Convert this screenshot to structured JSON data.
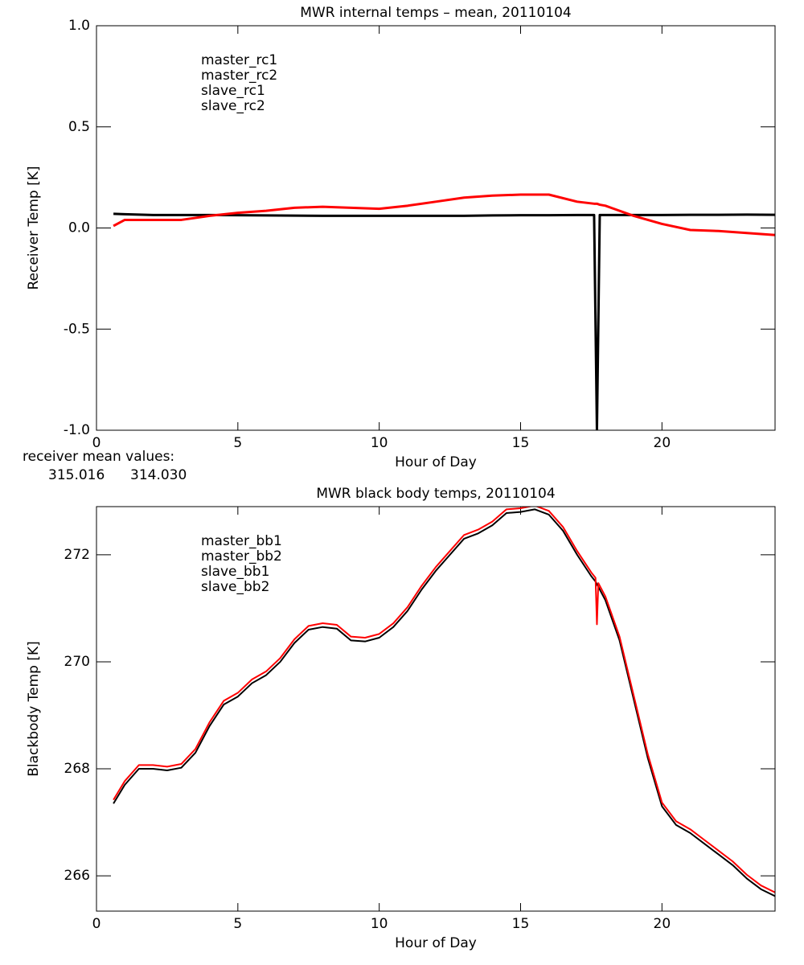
{
  "chart_data": [
    {
      "type": "line",
      "title": "MWR internal temps – mean, 20110104",
      "x_label": "Hour of Day",
      "y_label": "Receiver Temp [K]",
      "xlim": [
        0,
        24
      ],
      "xticks": [
        0,
        5,
        10,
        15,
        20
      ],
      "ylim": [
        -1,
        1
      ],
      "yticks": [
        {
          "value": -1,
          "label": "-1.0"
        },
        {
          "value": -0.5,
          "label": "-0.5"
        },
        {
          "value": 0,
          "label": "0.0"
        },
        {
          "value": 0.5,
          "label": "0.5"
        },
        {
          "value": 1,
          "label": "1.0"
        }
      ],
      "legend": "upper left",
      "x": [
        0.6,
        1,
        2,
        3,
        4,
        5,
        6,
        7,
        8,
        9,
        10,
        11,
        12,
        13,
        14,
        15,
        16,
        17,
        17.6,
        17.7,
        17.8,
        18,
        19,
        20,
        21,
        22,
        23,
        24
      ],
      "series": [
        {
          "name": "master_rc1",
          "color": "#000000",
          "values": [
            0.07,
            0.068,
            0.064,
            0.064,
            0.064,
            0.063,
            0.062,
            0.061,
            0.06,
            0.06,
            0.06,
            0.06,
            0.06,
            0.06,
            0.062,
            0.063,
            0.063,
            0.064,
            0.064,
            -1,
            0.064,
            0.064,
            0.064,
            0.064,
            0.065,
            0.065,
            0.066,
            0.065
          ]
        },
        {
          "name": "master_rc2",
          "color": "#ff0000",
          "values": [
            0.01,
            0.04,
            0.04,
            0.04,
            0.06,
            0.075,
            0.085,
            0.1,
            0.105,
            0.1,
            0.095,
            0.11,
            0.13,
            0.15,
            0.16,
            0.165,
            0.165,
            0.13,
            0.12,
            0.12,
            0.115,
            0.11,
            0.06,
            0.02,
            -0.01,
            -0.015,
            -0.025,
            -0.035
          ]
        },
        {
          "name": "slave_rc1",
          "color": "#3333ff",
          "values": [
            null,
            null,
            null,
            null,
            null,
            null,
            null,
            null,
            null,
            null,
            null,
            null,
            null,
            null,
            null,
            null,
            null,
            null,
            null,
            null,
            null,
            null,
            null,
            null,
            null,
            null,
            null,
            null
          ]
        },
        {
          "name": "slave_rc2",
          "color": "#22dd22",
          "values": [
            null,
            null,
            null,
            null,
            null,
            null,
            null,
            null,
            null,
            null,
            null,
            null,
            null,
            null,
            null,
            null,
            null,
            null,
            null,
            null,
            null,
            null,
            null,
            null,
            null,
            null,
            null,
            null
          ]
        }
      ],
      "annotation": {
        "text": "receiver mean values:",
        "values": [
          315.016,
          {
            "value": 314.03,
            "label": "314.030"
          }
        ]
      }
    },
    {
      "type": "line",
      "title": "MWR black body temps, 20110104",
      "x_label": "Hour of Day",
      "y_label": "Blackbody Temp [K]",
      "xlim": [
        0,
        24
      ],
      "xticks": [
        0,
        5,
        10,
        15,
        20
      ],
      "ylim": [
        265.34,
        272.9
      ],
      "yticks": [
        266,
        268,
        270,
        272
      ],
      "legend": "upper left",
      "x": [
        0.6,
        1,
        1.5,
        2,
        2.5,
        3,
        3.5,
        4,
        4.5,
        5,
        5.5,
        6,
        6.5,
        7,
        7.5,
        8,
        8.5,
        9,
        9.5,
        10,
        10.5,
        11,
        11.5,
        12,
        12.5,
        13,
        13.5,
        14,
        14.5,
        15,
        15.5,
        16,
        16.5,
        17,
        17.5,
        17.65,
        17.7,
        17.75,
        18,
        18.5,
        19,
        19.5,
        20,
        20.5,
        21,
        21.5,
        22,
        22.5,
        23,
        23.5,
        24
      ],
      "series": [
        {
          "name": "master_bb1",
          "color": "#000000",
          "values": [
            267.35,
            267.7,
            268.0,
            268.0,
            267.97,
            268.02,
            268.3,
            268.8,
            269.2,
            269.35,
            269.6,
            269.75,
            270.0,
            270.35,
            270.6,
            270.65,
            270.62,
            270.4,
            270.38,
            270.45,
            270.65,
            270.95,
            271.35,
            271.7,
            272.0,
            272.3,
            272.4,
            272.55,
            272.78,
            272.8,
            272.85,
            272.75,
            272.45,
            272.0,
            271.6,
            271.5,
            271.45,
            271.4,
            271.15,
            270.4,
            269.3,
            268.2,
            267.3,
            266.95,
            266.8,
            266.6,
            266.4,
            266.2,
            265.95,
            265.75,
            265.62
          ]
        },
        {
          "name": "master_bb2",
          "color": "#ff0000",
          "values": [
            267.42,
            267.77,
            268.07,
            268.07,
            268.04,
            268.09,
            268.37,
            268.87,
            269.27,
            269.42,
            269.67,
            269.82,
            270.07,
            270.42,
            270.67,
            270.72,
            270.69,
            270.47,
            270.45,
            270.52,
            270.72,
            271.02,
            271.42,
            271.77,
            272.07,
            272.37,
            272.47,
            272.62,
            272.85,
            272.87,
            272.92,
            272.82,
            272.52,
            272.07,
            271.67,
            271.57,
            270.7,
            271.47,
            271.22,
            270.47,
            269.37,
            268.27,
            267.37,
            267.02,
            266.87,
            266.67,
            266.47,
            266.27,
            266.02,
            265.82,
            265.69
          ]
        },
        {
          "name": "slave_bb1",
          "color": "#3333ff",
          "values": [
            null,
            null,
            null,
            null,
            null,
            null,
            null,
            null,
            null,
            null,
            null,
            null,
            null,
            null,
            null,
            null,
            null,
            null,
            null,
            null,
            null,
            null,
            null,
            null,
            null,
            null,
            null,
            null,
            null,
            null,
            null,
            null,
            null,
            null,
            null,
            null,
            null,
            null,
            null,
            null,
            null,
            null,
            null,
            null,
            null,
            null,
            null,
            null,
            null,
            null,
            null
          ]
        },
        {
          "name": "slave_bb2",
          "color": "#22dd22",
          "values": [
            null,
            null,
            null,
            null,
            null,
            null,
            null,
            null,
            null,
            null,
            null,
            null,
            null,
            null,
            null,
            null,
            null,
            null,
            null,
            null,
            null,
            null,
            null,
            null,
            null,
            null,
            null,
            null,
            null,
            null,
            null,
            null,
            null,
            null,
            null,
            null,
            null,
            null,
            null,
            null,
            null,
            null,
            null,
            null,
            null,
            null,
            null,
            null,
            null,
            null,
            null
          ]
        }
      ]
    }
  ]
}
